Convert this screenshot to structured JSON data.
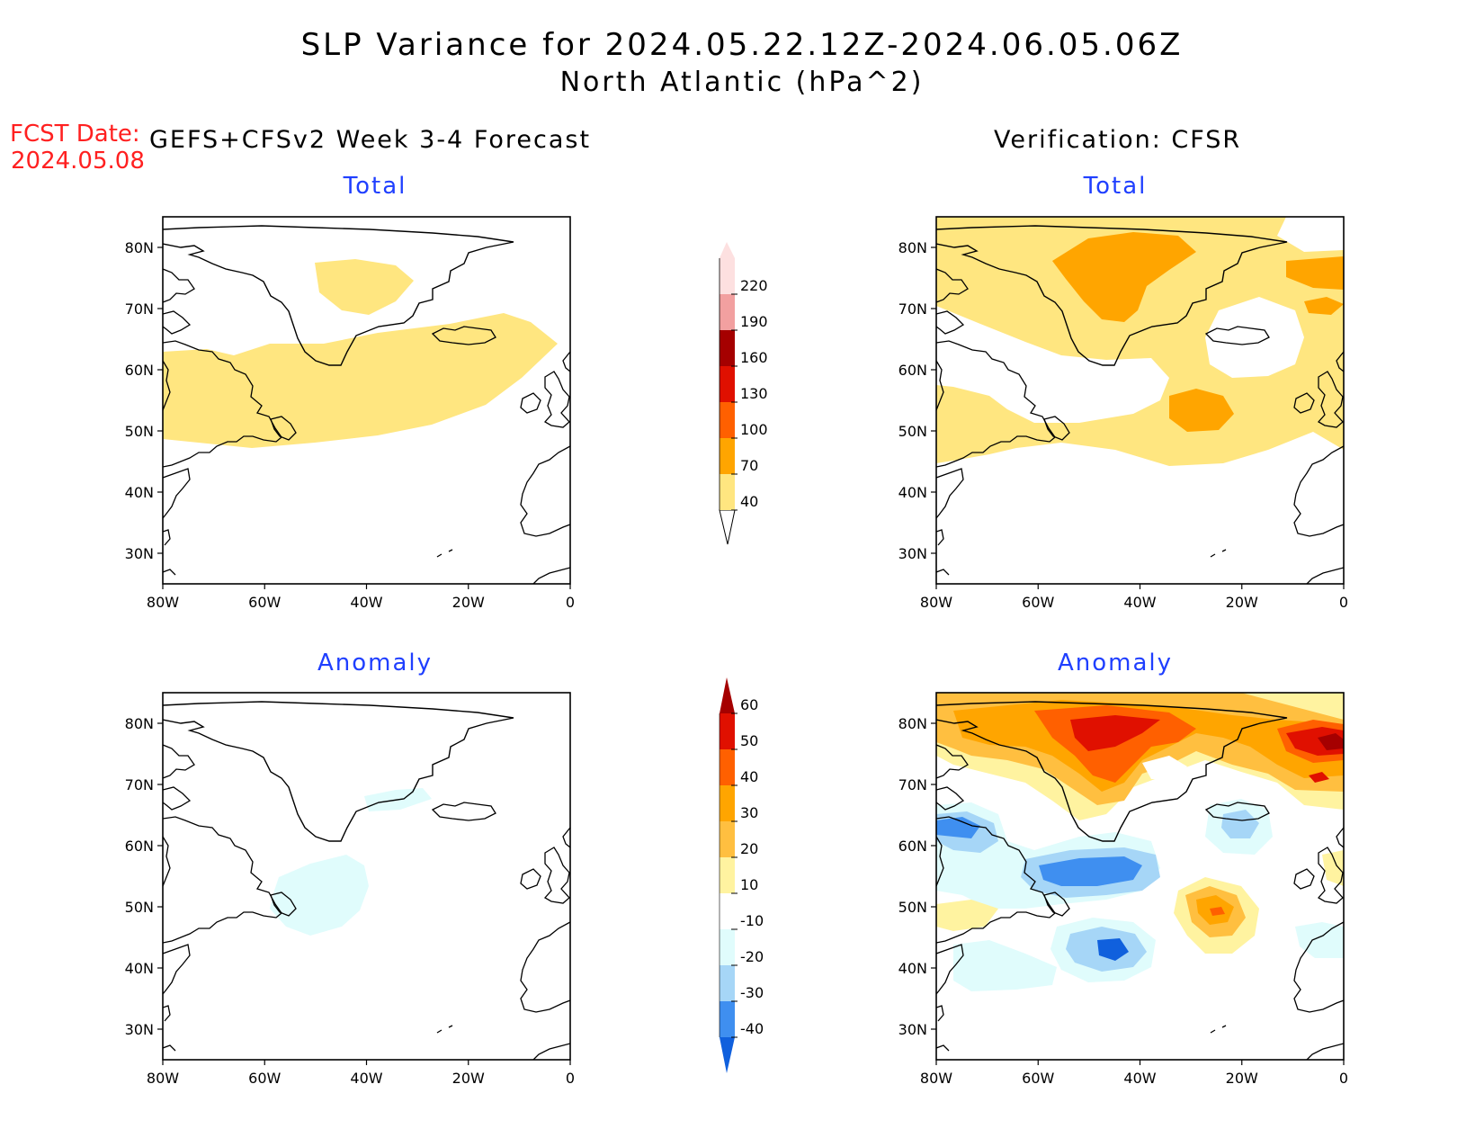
{
  "header": {
    "title": "SLP Variance for 2024.05.22.12Z-2024.06.05.06Z",
    "subtitle": "North Atlantic (hPa^2)",
    "fcst_label": "FCST Date:",
    "fcst_date": "2024.05.08",
    "left_heading": "GEFS+CFSv2 Week 3-4 Forecast",
    "right_heading": "Verification: CFSR"
  },
  "panels": {
    "forecast_total": "Total",
    "forecast_anomaly": "Anomaly",
    "verification_total": "Total",
    "verification_anomaly": "Anomaly"
  },
  "axes": {
    "lat_ticks": [
      "80N",
      "70N",
      "60N",
      "50N",
      "40N",
      "30N"
    ],
    "lon_ticks": [
      "80W",
      "60W",
      "40W",
      "20W",
      "0"
    ],
    "lat_range": [
      25,
      85
    ],
    "lon_range": [
      -80,
      0
    ]
  },
  "colorbars": {
    "total": {
      "levels": [
        "40",
        "70",
        "100",
        "130",
        "160",
        "190",
        "220"
      ],
      "colors": [
        "#ffe680",
        "#ffa500",
        "#ff6000",
        "#e01000",
        "#a50000",
        "#f2a0a0",
        "#fde0e0"
      ]
    },
    "anomaly": {
      "levels": [
        "60",
        "50",
        "40",
        "30",
        "20",
        "10",
        "-10",
        "-20",
        "-30",
        "-40"
      ],
      "colors": [
        "#a50000",
        "#e01000",
        "#ff6000",
        "#ffa500",
        "#ffbf40",
        "#fff3a0",
        "#ffffff",
        "#e0fcfc",
        "#a6d6f7",
        "#3f8ff0",
        "#1060dd"
      ]
    }
  },
  "colors": {
    "title_text": "#000000",
    "fcst_text": "#ff2020",
    "panel_title": "#1f3fff"
  }
}
